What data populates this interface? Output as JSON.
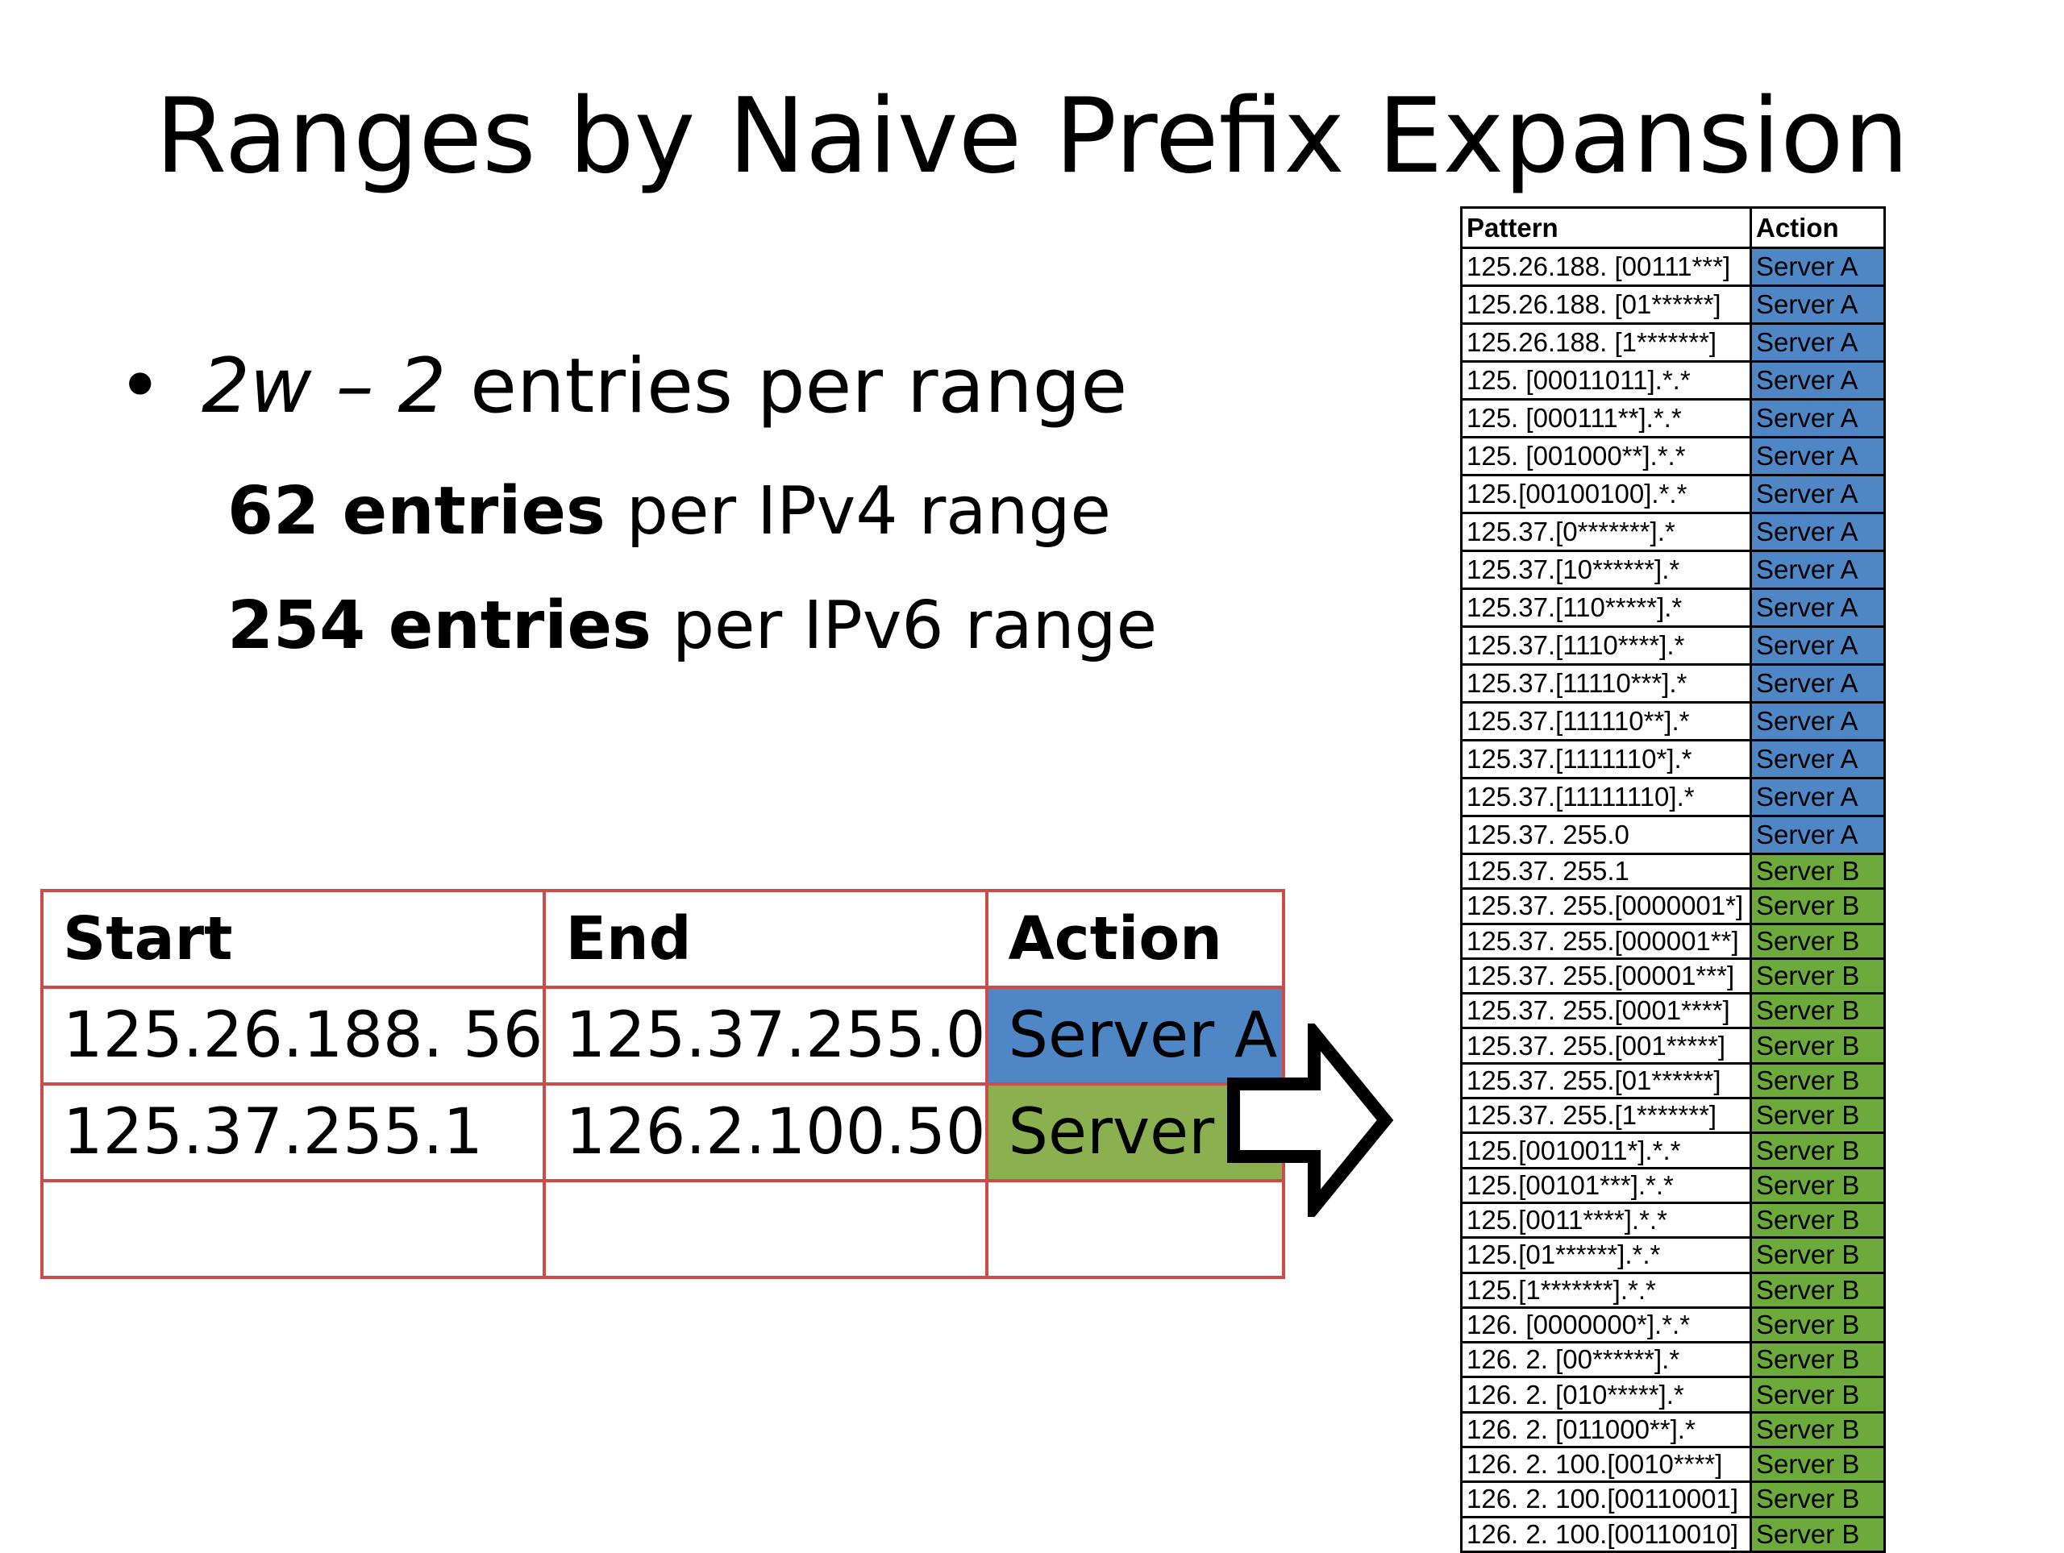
{
  "title": "Ranges by Naive Prefix Expansion",
  "bullets": {
    "main": {
      "symbol": "•",
      "formula": "2w – 2",
      "text": " entries per range"
    },
    "sub": [
      {
        "strong": "62 entries",
        "text": " per IPv4 range"
      },
      {
        "strong": "254 entries",
        "text": " per IPv6 range"
      }
    ]
  },
  "range_table": {
    "headers": [
      "Start",
      "End",
      "Action"
    ],
    "rows": [
      {
        "start": "125.26.188. 56",
        "end": "125.37.255.0",
        "action": "Server A",
        "color": "#4f87c6"
      },
      {
        "start": "125.37.255.1",
        "end": "126.2.100.50",
        "action": "Server B",
        "color": "#8bb04f"
      },
      {
        "start": "",
        "end": "",
        "action": "",
        "color": "#ffffff"
      }
    ],
    "border_color": "#cc4b4b"
  },
  "arrow_icon": "right-arrow-icon",
  "pattern_table": {
    "headers": [
      "Pattern",
      "Action"
    ],
    "colors": {
      "Server A": "#4f87c6",
      "Server B": "#6caa3b"
    },
    "rows": [
      {
        "pattern": "125.26.188. [00111***]",
        "action": "Server A"
      },
      {
        "pattern": "125.26.188. [01******]",
        "action": "Server A"
      },
      {
        "pattern": "125.26.188. [1*******]",
        "action": "Server A"
      },
      {
        "pattern": "125. [00011011].*.*",
        "action": "Server A"
      },
      {
        "pattern": "125. [000111**].*.*",
        "action": "Server A"
      },
      {
        "pattern": "125. [001000**].*.*",
        "action": "Server A"
      },
      {
        "pattern": "125.[00100100].*.*",
        "action": "Server A"
      },
      {
        "pattern": "125.37.[0*******].*",
        "action": "Server A"
      },
      {
        "pattern": "125.37.[10******].*",
        "action": "Server A"
      },
      {
        "pattern": "125.37.[110*****].*",
        "action": "Server A"
      },
      {
        "pattern": "125.37.[1110****].*",
        "action": "Server A"
      },
      {
        "pattern": "125.37.[11110***].*",
        "action": "Server A"
      },
      {
        "pattern": "125.37.[111110**].*",
        "action": "Server A"
      },
      {
        "pattern": "125.37.[1111110*].*",
        "action": "Server A"
      },
      {
        "pattern": "125.37.[11111110].*",
        "action": "Server A"
      },
      {
        "pattern": "125.37. 255.0",
        "action": "Server A"
      },
      {
        "pattern": "125.37. 255.1",
        "action": "Server B"
      },
      {
        "pattern": "125.37. 255.[0000001*]",
        "action": "Server B"
      },
      {
        "pattern": "125.37. 255.[000001**]",
        "action": "Server B"
      },
      {
        "pattern": "125.37. 255.[00001***]",
        "action": "Server B"
      },
      {
        "pattern": "125.37. 255.[0001****]",
        "action": "Server B"
      },
      {
        "pattern": "125.37. 255.[001*****]",
        "action": "Server B"
      },
      {
        "pattern": "125.37. 255.[01******]",
        "action": "Server B"
      },
      {
        "pattern": "125.37. 255.[1*******]",
        "action": "Server B"
      },
      {
        "pattern": "125.[0010011*].*.*",
        "action": "Server B"
      },
      {
        "pattern": "125.[00101***].*.*",
        "action": "Server B"
      },
      {
        "pattern": "125.[0011****].*.*",
        "action": "Server B"
      },
      {
        "pattern": "125.[01******].*.*",
        "action": "Server B"
      },
      {
        "pattern": "125.[1*******].*.*",
        "action": "Server B"
      },
      {
        "pattern": "126. [0000000*].*.*",
        "action": "Server B"
      },
      {
        "pattern": "126. 2. [00******].*",
        "action": "Server B"
      },
      {
        "pattern": "126. 2. [010*****].*",
        "action": "Server B"
      },
      {
        "pattern": "126. 2. [011000**].*",
        "action": "Server B"
      },
      {
        "pattern": "126. 2. 100.[0010****]",
        "action": "Server B"
      },
      {
        "pattern": "126. 2. 100.[00110001]",
        "action": "Server B"
      },
      {
        "pattern": "126. 2. 100.[00110010]",
        "action": "Server B"
      }
    ]
  }
}
